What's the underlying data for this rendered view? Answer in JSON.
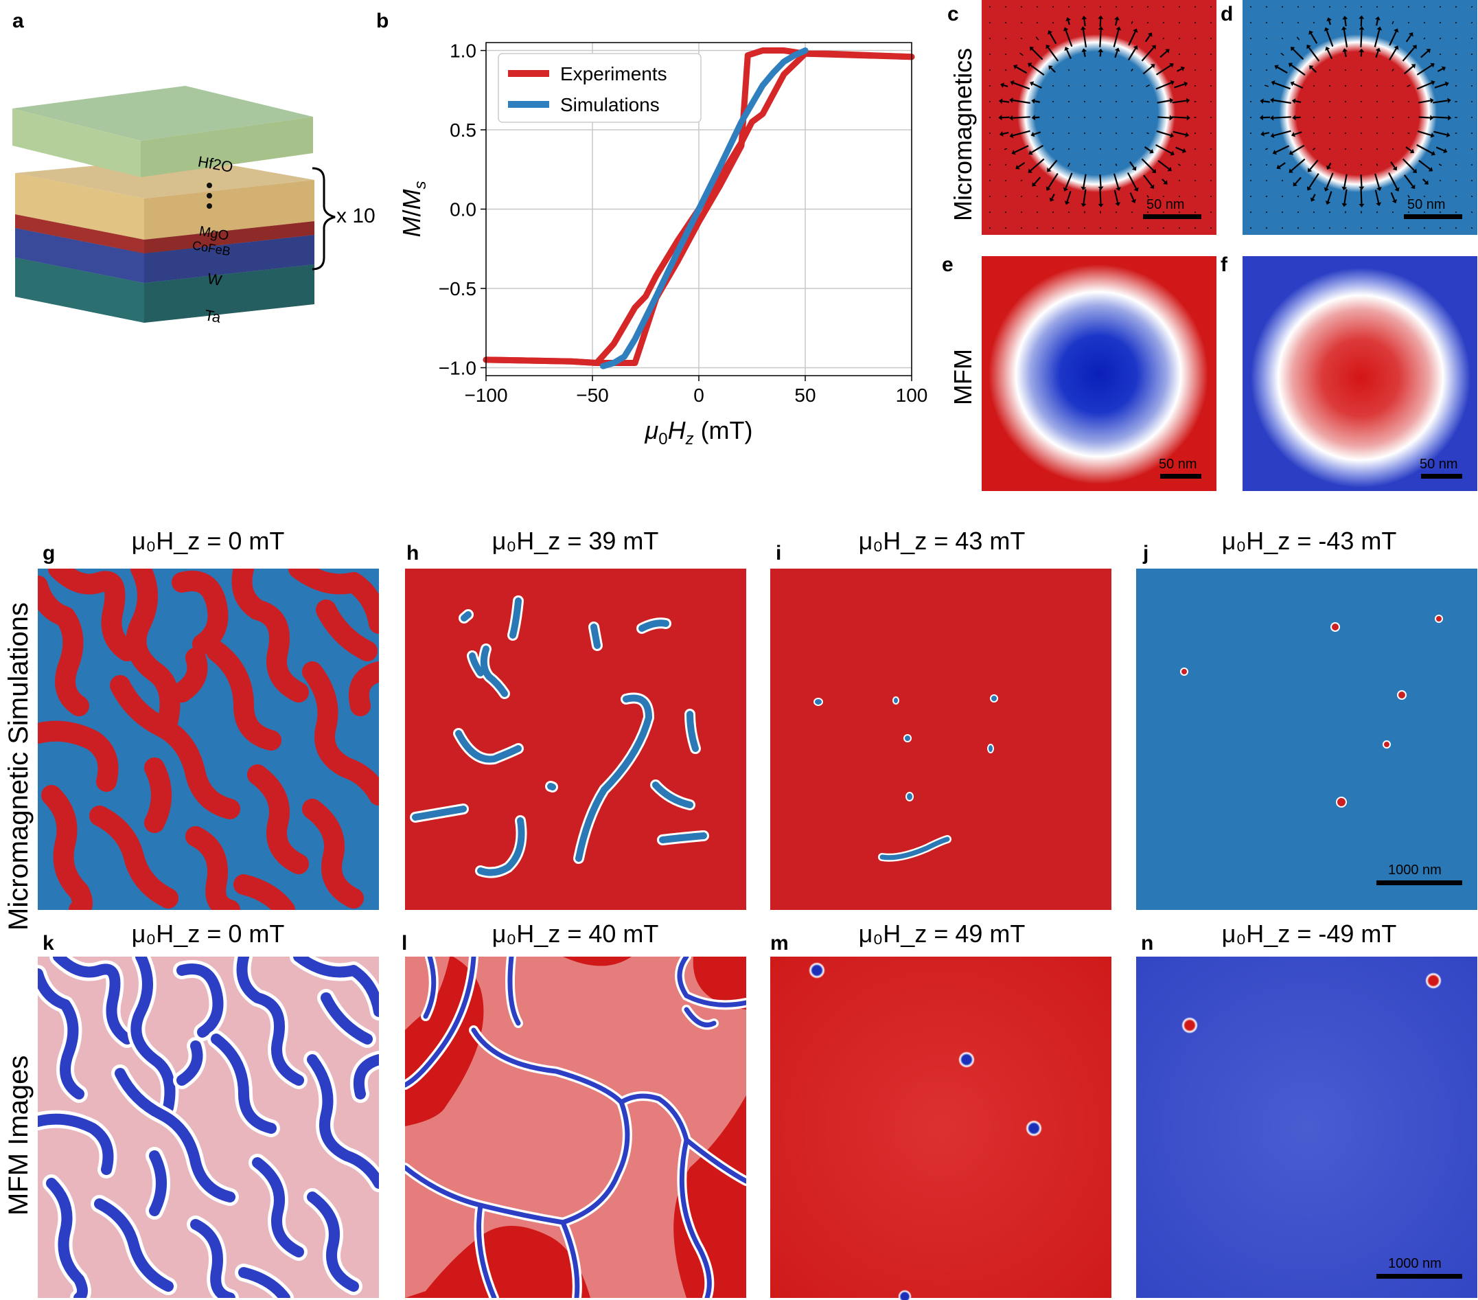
{
  "panel_letters": {
    "a": "a",
    "b": "b",
    "c": "c",
    "d": "d",
    "e": "e",
    "f": "f",
    "g": "g",
    "h": "h",
    "i": "i",
    "j": "j",
    "k": "k",
    "l": "l",
    "m": "m",
    "n": "n"
  },
  "stack": {
    "layers": [
      "Hf2O",
      "MgO",
      "CoFeB",
      "W",
      "Ta"
    ],
    "repeat_label": "x 10",
    "colors": {
      "Hf2O": "#b4cf9a",
      "MgO": "#e1c384",
      "CoFeB": "#a3322e",
      "W": "#3a4a9a",
      "Ta": "#2f7a7c"
    }
  },
  "row_labels": {
    "micromagnetics": "Micromagnetics",
    "mfm": "MFM",
    "micromagnetic_simulations": "Micromagnetic Simulations",
    "mfm_images": "MFM Images"
  },
  "scale_bars": {
    "small": "50 nm",
    "large": "1000 nm"
  },
  "field_titles": {
    "g": "μ₀H_z = 0 mT",
    "h": "μ₀H_z = 39 mT",
    "i": "μ₀H_z = 43 mT",
    "j": "μ₀H_z = -43 mT",
    "k": "μ₀H_z = 0 mT",
    "l": "μ₀H_z = 40 mT",
    "m": "μ₀H_z = 49 mT",
    "n": "μ₀H_z = -49 mT"
  },
  "colors": {
    "red": "#cc1f23",
    "blue": "#2a78b5",
    "mfm_red": "#d01818",
    "mfm_blue": "#2c3fc4"
  },
  "chart_data": {
    "type": "line",
    "xlabel": "μ₀H_z (mT)",
    "ylabel": "M/M_s",
    "xlim": [
      -100,
      100
    ],
    "ylim": [
      -1.05,
      1.05
    ],
    "xticks": [
      -100,
      -50,
      0,
      50,
      100
    ],
    "xtick_labels": [
      "−100",
      "−50",
      "0",
      "50",
      "100"
    ],
    "yticks": [
      -1.0,
      -0.5,
      0.0,
      0.5,
      1.0
    ],
    "ytick_labels": [
      "−1.0",
      "−0.5",
      "0.0",
      "0.5",
      "1.0"
    ],
    "grid": true,
    "legend_position": "top-left",
    "series": [
      {
        "name": "Experiments",
        "color": "#d62728",
        "x": [
          -100,
          -60,
          -48,
          -40,
          -30,
          -20,
          -10,
          0,
          10,
          20,
          23,
          30,
          40,
          50,
          60,
          100
        ],
        "y": [
          -0.95,
          -0.96,
          -0.97,
          -0.97,
          -0.97,
          -0.56,
          -0.33,
          -0.08,
          0.15,
          0.4,
          0.97,
          1.0,
          1.0,
          0.98,
          0.98,
          0.96
        ]
      },
      {
        "name": "Experiments (descending)",
        "color": "#d62728",
        "x": [
          100,
          50,
          40,
          30,
          25,
          20,
          10,
          0,
          -10,
          -20,
          -25,
          -30,
          -40,
          -48,
          -60,
          -100
        ],
        "y": [
          0.96,
          0.98,
          0.85,
          0.6,
          0.55,
          0.42,
          0.2,
          0.0,
          -0.2,
          -0.42,
          -0.55,
          -0.62,
          -0.85,
          -0.97,
          -0.96,
          -0.95
        ]
      },
      {
        "name": "Simulations",
        "color": "#2f7fbf",
        "x": [
          -45,
          -40,
          -35,
          -30,
          -20,
          -10,
          0,
          10,
          20,
          30,
          35,
          40,
          45,
          50
        ],
        "y": [
          -0.99,
          -0.97,
          -0.93,
          -0.82,
          -0.55,
          -0.27,
          0.0,
          0.27,
          0.55,
          0.78,
          0.86,
          0.93,
          0.97,
          1.0
        ]
      }
    ],
    "legend_entries": [
      "Experiments",
      "Simulations"
    ]
  }
}
